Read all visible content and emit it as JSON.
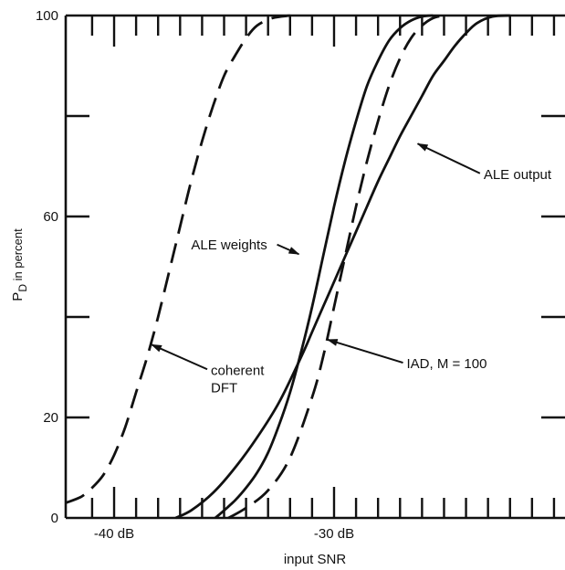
{
  "chart_data": {
    "type": "line",
    "xlabel": "input SNR",
    "ylabel": "P",
    "ylabel_sub": "D",
    "ylabel_suffix": " in percent",
    "xlim": [
      -42.2,
      -19.5
    ],
    "ylim": [
      0,
      100
    ],
    "x_major_ticks": [
      {
        "value": -40,
        "label": "-40 dB"
      },
      {
        "value": -30,
        "label": "-30 dB"
      }
    ],
    "x_minor_ticks": [
      -41,
      -39,
      -38,
      -37,
      -36,
      -35,
      -34,
      -33,
      -32,
      -31,
      -29,
      -28,
      -27,
      -26,
      -25,
      -24,
      -23,
      -22,
      -21,
      -20
    ],
    "y_major_ticks": [
      {
        "value": 100,
        "label": "100"
      },
      {
        "value": 60,
        "label": "60"
      },
      {
        "value": 20,
        "label": "20"
      },
      {
        "value": 0,
        "label": "0"
      }
    ],
    "y_minor_ticks": [
      80,
      40
    ],
    "grid": false,
    "series": [
      {
        "style": "dashed",
        "x": [
          -42.2,
          -41.5,
          -41.0,
          -40.5,
          -40.0,
          -39.5,
          -39.0,
          -38.5,
          -38.0,
          -37.5,
          -37.0,
          -36.5,
          -36.0,
          -35.5,
          -35.0,
          -34.5,
          -34.0,
          -33.5,
          -32.8,
          -32.0
        ],
        "y": [
          3,
          4.2,
          6,
          8.5,
          12.5,
          18,
          25,
          32,
          40,
          49,
          58,
          67,
          75,
          82,
          88,
          92,
          95.5,
          98,
          99.5,
          100
        ]
      },
      {
        "style": "solid",
        "x": [
          -37.2,
          -36.5,
          -35.5,
          -34.5,
          -33.5,
          -32.5,
          -31.5,
          -31.0,
          -30.5,
          -30.0,
          -29.5,
          -29.0,
          -28.5,
          -28.0,
          -27.5,
          -27.0,
          -26.5,
          -26.0,
          -25.5,
          -25.0,
          -24.5,
          -24.0,
          -23.5,
          -22.8,
          -22.0
        ],
        "y": [
          0,
          1.5,
          5,
          10,
          16,
          23,
          32,
          37,
          42,
          47,
          52,
          57,
          62,
          67,
          71.5,
          76,
          80,
          84,
          88,
          91,
          94,
          96.5,
          98.5,
          99.8,
          100
        ]
      },
      {
        "style": "solid",
        "x": [
          -35.4,
          -35.0,
          -34.5,
          -34.0,
          -33.5,
          -33.0,
          -32.5,
          -32.0,
          -31.5,
          -31.0,
          -30.5,
          -30.0,
          -29.5,
          -29.0,
          -28.5,
          -28.0,
          -27.5,
          -27.0,
          -26.5,
          -26.0,
          -25.5
        ],
        "y": [
          0,
          1.5,
          3.5,
          6,
          9,
          13,
          18.5,
          25,
          33,
          42,
          52,
          62,
          71,
          79,
          86,
          91,
          95,
          97.5,
          99,
          99.8,
          100
        ]
      },
      {
        "style": "dashed",
        "x": [
          -34.8,
          -34.0,
          -33.0,
          -32.0,
          -31.0,
          -30.5,
          -30.0,
          -29.5,
          -29.0,
          -28.5,
          -28.0,
          -27.5,
          -27.0,
          -26.5,
          -26.0,
          -25.5,
          -25.0
        ],
        "y": [
          0,
          2,
          5.5,
          12,
          24,
          32,
          42,
          52,
          62,
          71,
          79,
          86,
          91.5,
          95.5,
          98,
          99.5,
          100
        ]
      }
    ],
    "annotations": [
      {
        "text": "coherent",
        "text2": "DFT",
        "x": -35.6,
        "y": 28.5,
        "arrow_to": [
          -38.3,
          34.5
        ]
      },
      {
        "text": "ALE weights",
        "x": -36.5,
        "y": 53.5,
        "arrow_to": [
          -31.6,
          52.5
        ]
      },
      {
        "text": "ALE output",
        "x": -23.2,
        "y": 67.5,
        "arrow_to": [
          -26.2,
          74.5
        ]
      },
      {
        "text": "IAD, M = 100",
        "x": -26.7,
        "y": 29.8,
        "arrow_to": [
          -30.3,
          35.5
        ]
      }
    ]
  }
}
